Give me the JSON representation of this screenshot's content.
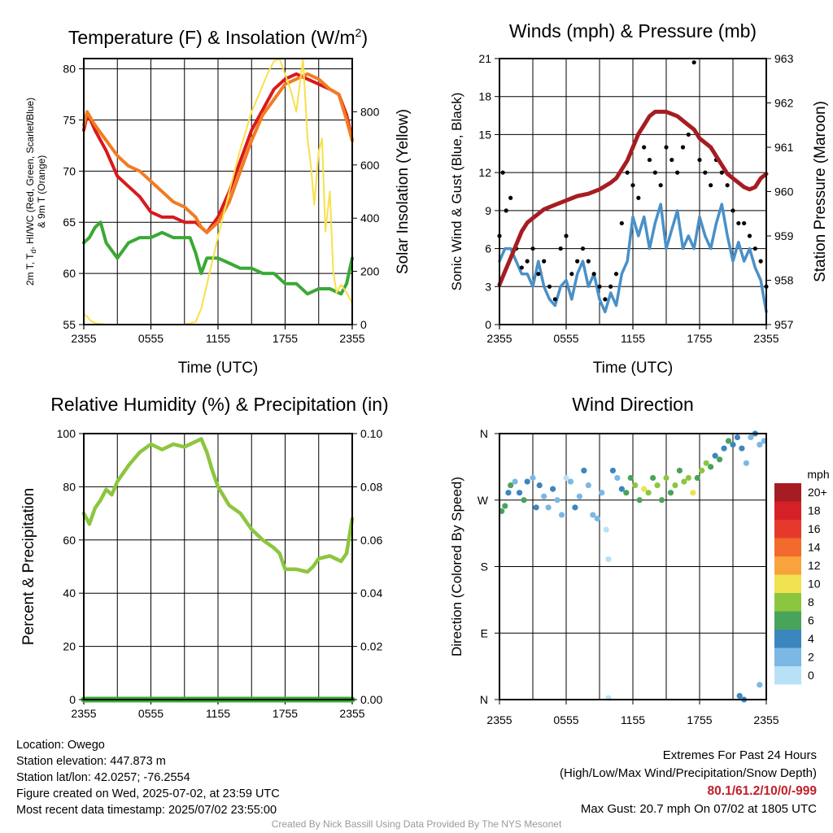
{
  "chart_data": [
    {
      "type": "line",
      "title": "Temperature (F) & Insolation (W/m²)",
      "xlabel": "Time (UTC)",
      "ylabel": "2m T, Td, HI/WC (Red, Green, Scarlet/Blue) & 9m T (Orange)",
      "ylabel_line1": "2m T, T",
      "ylabel_sub": "d",
      "ylabel_line1b": ", HI/WC (Red, Green, Scarlet/Blue)",
      "ylabel_line2": "& 9m T (Orange)",
      "ylabel_right": "Solar Insolation (Yellow)",
      "x_ticks": [
        "2355",
        "0555",
        "1155",
        "1755",
        "2355"
      ],
      "ylim": [
        55,
        81
      ],
      "y_ticks": [
        55,
        60,
        65,
        70,
        75,
        80
      ],
      "y2lim": [
        0,
        1000
      ],
      "y2_ticks": [
        0,
        200,
        400,
        600,
        800
      ],
      "series": [
        {
          "name": "2m T",
          "color": "#d9191c",
          "x": [
            0,
            0.3,
            0.6,
            1,
            2,
            3,
            4,
            5,
            6,
            7,
            8,
            9,
            10,
            10.5,
            11,
            12,
            13,
            14,
            15,
            16,
            17,
            18,
            19,
            20,
            21,
            22,
            22.8,
            23.5,
            24
          ],
          "values": [
            74,
            75.5,
            75,
            74,
            72,
            69.5,
            68.5,
            67.5,
            66,
            65.5,
            65.5,
            65,
            65,
            64.5,
            64,
            65.5,
            68,
            71,
            74,
            76,
            78,
            79,
            79.5,
            79,
            78.5,
            78,
            77.5,
            75.5,
            73
          ]
        },
        {
          "name": "9m T",
          "color": "#f37b21",
          "x": [
            0,
            0.3,
            0.6,
            1,
            2,
            3,
            4,
            5,
            6,
            7,
            8,
            9,
            10,
            10.5,
            11,
            12,
            13,
            14,
            15,
            16,
            17,
            18,
            19,
            20,
            21,
            22,
            22.8,
            23.5,
            24
          ],
          "values": [
            74.5,
            75.8,
            75.2,
            74.5,
            73,
            71.5,
            70.5,
            70,
            69,
            68,
            67,
            66.5,
            65.5,
            64.5,
            64,
            65,
            67,
            70,
            73,
            75.5,
            77,
            78.5,
            79,
            79.5,
            79,
            78,
            77.5,
            75,
            73
          ]
        },
        {
          "name": "Td",
          "color": "#3aa935",
          "x": [
            0,
            0.5,
            1,
            1.5,
            2,
            3,
            4,
            5,
            6,
            7,
            8,
            9,
            9.5,
            10,
            10.5,
            11,
            12,
            13,
            14,
            15,
            16,
            17,
            18,
            19,
            20,
            21,
            22,
            23,
            23.5,
            24
          ],
          "values": [
            63,
            63.5,
            64.5,
            65,
            63,
            61.5,
            63,
            63.5,
            63.5,
            64,
            63.5,
            63.5,
            63.5,
            62,
            60,
            61.5,
            61.5,
            61,
            60.5,
            60.5,
            60,
            60,
            59,
            59,
            58,
            58.5,
            58.5,
            58,
            59,
            61.5
          ]
        },
        {
          "name": "Solar Insolation",
          "color": "#f9e04b",
          "axis": "right",
          "x": [
            0,
            0.3,
            0.6,
            1,
            2,
            3,
            4,
            5,
            6,
            7,
            8,
            9,
            10,
            10.5,
            11,
            12,
            13,
            14,
            15,
            16,
            16.5,
            17,
            17.5,
            18,
            18.5,
            19,
            19.3,
            19.6,
            20,
            20.3,
            20.6,
            21,
            21.3,
            21.6,
            22,
            22.3,
            22.6,
            23,
            23.5,
            24
          ],
          "values": [
            40,
            30,
            15,
            5,
            0,
            0,
            0,
            0,
            0,
            0,
            0,
            0,
            10,
            60,
            150,
            330,
            500,
            660,
            800,
            900,
            950,
            990,
            1000,
            940,
            880,
            800,
            900,
            1000,
            700,
            600,
            450,
            650,
            700,
            350,
            500,
            200,
            120,
            150,
            120,
            80
          ]
        }
      ]
    },
    {
      "type": "line",
      "title": "Winds (mph) & Pressure (mb)",
      "xlabel": "Time (UTC)",
      "ylabel": "Sonic Wind & Gust (Blue, Black)",
      "ylabel_right": "Station Pressure (Maroon)",
      "x_ticks": [
        "2355",
        "0555",
        "1155",
        "1755",
        "2355"
      ],
      "ylim": [
        0,
        21
      ],
      "y_ticks": [
        0,
        3,
        6,
        9,
        12,
        15,
        18,
        21
      ],
      "y2lim": [
        957,
        963
      ],
      "y2_ticks": [
        957,
        958,
        959,
        960,
        961,
        962,
        963
      ],
      "series": [
        {
          "name": "Sonic Wind",
          "color": "#4a90c8",
          "x": [
            0,
            0.5,
            1,
            1.5,
            2,
            2.5,
            3,
            3.5,
            4,
            4.5,
            5,
            5.5,
            6,
            6.5,
            7,
            7.5,
            8,
            8.5,
            9,
            9.5,
            10,
            10.5,
            11,
            11.5,
            12,
            12.5,
            13,
            13.5,
            14,
            14.5,
            15,
            15.5,
            16,
            16.5,
            17,
            17.5,
            18,
            18.5,
            19,
            19.5,
            20,
            20.5,
            21,
            21.5,
            22,
            22.5,
            23,
            23.5,
            24
          ],
          "values": [
            5,
            6,
            6,
            5,
            4,
            4,
            3,
            5,
            3,
            2,
            1.5,
            3,
            3.5,
            2,
            4,
            5,
            3,
            4,
            2,
            1,
            2.5,
            1.5,
            4,
            5,
            8.5,
            7,
            8.5,
            6,
            8,
            9.5,
            6,
            7.5,
            9,
            6,
            7,
            6,
            8.5,
            7,
            6,
            8,
            9.5,
            7,
            5,
            6.5,
            5,
            6,
            4.5,
            3.5,
            1
          ]
        },
        {
          "name": "Gust",
          "color": "#000000",
          "x": [
            0,
            0.3,
            0.6,
            1,
            1.5,
            2,
            2.5,
            3,
            3.5,
            4,
            4.5,
            5,
            5.5,
            6,
            6.5,
            7,
            7.5,
            8,
            8.5,
            9,
            9.5,
            10,
            10.5,
            11,
            11.5,
            12,
            12.5,
            13,
            13.5,
            14,
            14.5,
            15,
            15.5,
            16,
            16.5,
            17,
            17.5,
            18,
            18.5,
            19,
            19.5,
            20,
            20.5,
            21,
            21.5,
            22,
            22.5,
            23,
            23.5,
            24
          ],
          "values": [
            7,
            12,
            9,
            10,
            6,
            4.5,
            5,
            6,
            4,
            5,
            3,
            2,
            6,
            7,
            4,
            5,
            6,
            5,
            4,
            3,
            2,
            3,
            4,
            8,
            12,
            11,
            10,
            14,
            13,
            12,
            11,
            14,
            13,
            12,
            14,
            15,
            20.7,
            13,
            12,
            11,
            13,
            12,
            11,
            9,
            8,
            8,
            7,
            6,
            5,
            3
          ]
        },
        {
          "name": "Station Pressure",
          "color": "#a51d22",
          "axis": "right",
          "x": [
            0,
            0.5,
            1,
            1.5,
            2,
            2.5,
            3,
            3.5,
            4,
            5,
            6,
            7,
            8,
            9,
            10,
            10.5,
            11,
            11.5,
            12,
            12.5,
            13,
            13.5,
            14,
            14.5,
            15,
            15.5,
            16,
            16.5,
            17,
            17.5,
            18,
            18.5,
            19,
            19.5,
            20,
            20.5,
            21,
            21.5,
            22,
            22.5,
            23,
            23.5,
            24
          ],
          "values": [
            957.9,
            958.2,
            958.5,
            958.8,
            959.1,
            959.3,
            959.4,
            959.5,
            959.6,
            959.7,
            959.8,
            959.9,
            959.95,
            960.05,
            960.2,
            960.3,
            960.5,
            960.7,
            961,
            961.3,
            961.5,
            961.7,
            961.8,
            961.8,
            961.8,
            961.75,
            961.7,
            961.6,
            961.5,
            961.4,
            961.2,
            961.1,
            961,
            960.8,
            960.6,
            960.4,
            960.3,
            960.2,
            960.1,
            960.05,
            960.1,
            960.3,
            960.4
          ]
        }
      ]
    },
    {
      "type": "line",
      "title": "Relative Humidity (%) & Precipitation (in)",
      "ylabel": "Percent & Precipitation",
      "x_ticks": [
        "2355",
        "0555",
        "1155",
        "1755",
        "2355"
      ],
      "ylim": [
        0,
        100
      ],
      "y_ticks": [
        0,
        20,
        40,
        60,
        80,
        100
      ],
      "y2lim": [
        0,
        0.1
      ],
      "y2_ticks": [
        "0.00",
        "0.02",
        "0.04",
        "0.06",
        "0.08",
        "0.10"
      ],
      "series": [
        {
          "name": "Relative Humidity",
          "color": "#8cc63f",
          "x": [
            0,
            0.5,
            1,
            1.5,
            2,
            2.5,
            3,
            4,
            5,
            6,
            7,
            8,
            9,
            10,
            10.5,
            11,
            11.5,
            12,
            13,
            14,
            15,
            16,
            17,
            17.5,
            18,
            19,
            20,
            20.5,
            21,
            22,
            22.5,
            23,
            23.5,
            24
          ],
          "values": [
            70,
            66,
            72,
            75,
            79,
            77,
            82,
            88,
            93,
            96,
            94,
            96,
            95,
            97,
            98,
            93,
            86,
            80,
            73,
            70,
            64,
            60,
            57,
            55,
            49,
            49,
            48,
            50,
            53,
            54,
            53,
            52,
            55,
            68
          ]
        },
        {
          "name": "Precipitation",
          "color": "#3aa935",
          "axis": "right",
          "x": [
            0,
            24
          ],
          "values": [
            0,
            0
          ]
        }
      ]
    },
    {
      "type": "scatter",
      "title": "Wind Direction",
      "ylabel": "Direction (Colored By Speed)",
      "x_ticks": [
        "2355",
        "0555",
        "1155",
        "1755",
        "2355"
      ],
      "y_ticks": [
        "N",
        "E",
        "S",
        "W",
        "N"
      ],
      "ylim": [
        0,
        360
      ],
      "legend_title": "mph",
      "legend_labels": [
        "20+",
        "18",
        "16",
        "14",
        "12",
        "10",
        "8",
        "6",
        "4",
        "2",
        "0"
      ],
      "legend_colors": [
        "#a51d22",
        "#d62027",
        "#e53a2b",
        "#f26a2c",
        "#f8a33c",
        "#efe14f",
        "#8cc63f",
        "#4aa35a",
        "#3b86be",
        "#7bb8e3",
        "#b8e1f8"
      ],
      "x": [
        0.2,
        0.5,
        0.8,
        1.0,
        1.4,
        1.8,
        2.2,
        2.5,
        3.0,
        3.3,
        3.6,
        4.0,
        4.4,
        4.8,
        5.2,
        5.6,
        6.0,
        6.4,
        6.8,
        7.2,
        7.6,
        8.0,
        8.4,
        8.8,
        9.2,
        9.6,
        9.8,
        10.2,
        10.6,
        11.0,
        11.4,
        11.8,
        12.2,
        12.6,
        13.0,
        13.4,
        13.8,
        14.2,
        14.6,
        15.0,
        15.4,
        15.8,
        16.2,
        16.6,
        17.0,
        17.4,
        17.8,
        18.2,
        18.6,
        19.0,
        19.4,
        19.8,
        20.2,
        20.6,
        21.0,
        21.4,
        21.8,
        22.2,
        22.6,
        23.0,
        23.4,
        23.8,
        21.6,
        22.0,
        23.4,
        9.8
      ],
      "values": [
        255,
        262,
        280,
        290,
        295,
        280,
        270,
        295,
        300,
        260,
        290,
        275,
        260,
        285,
        270,
        250,
        300,
        295,
        260,
        275,
        310,
        290,
        250,
        245,
        280,
        230,
        190,
        310,
        300,
        285,
        280,
        300,
        290,
        270,
        285,
        280,
        300,
        290,
        270,
        300,
        280,
        290,
        310,
        295,
        300,
        280,
        300,
        310,
        320,
        315,
        330,
        325,
        340,
        350,
        345,
        355,
        340,
        320,
        355,
        360,
        345,
        350,
        5,
        0,
        20,
        2
      ],
      "speeds": [
        6,
        6,
        4,
        6,
        2,
        4,
        6,
        4,
        2,
        4,
        4,
        2,
        2,
        4,
        2,
        2,
        0,
        2,
        4,
        2,
        4,
        2,
        2,
        2,
        2,
        0,
        0,
        4,
        2,
        4,
        6,
        6,
        8,
        6,
        10,
        8,
        6,
        8,
        6,
        8,
        6,
        8,
        6,
        8,
        8,
        10,
        6,
        8,
        8,
        6,
        4,
        6,
        4,
        6,
        4,
        4,
        4,
        2,
        2,
        4,
        2,
        2,
        4,
        4,
        2,
        0
      ]
    }
  ],
  "info": {
    "location": "Location: Owego",
    "elevation": "Station elevation: 447.873 m",
    "latlon": "Station lat/lon: 42.0257; -76.2554",
    "created": "Figure created on Wed, 2025-07-02, at 23:59 UTC",
    "recent": "Most recent data timestamp: 2025/07/02 23:55:00"
  },
  "extremes": {
    "title": "Extremes For Past 24 Hours",
    "subtitle": "(High/Low/Max Wind/Precipitation/Snow Depth)",
    "values": "80.1/61.2/10/0/-999",
    "max_gust": "Max Gust: 20.7 mph On 07/02 at 1805 UTC"
  },
  "credit": "Created By Nick Bassill Using Data Provided By The NYS Mesonet"
}
